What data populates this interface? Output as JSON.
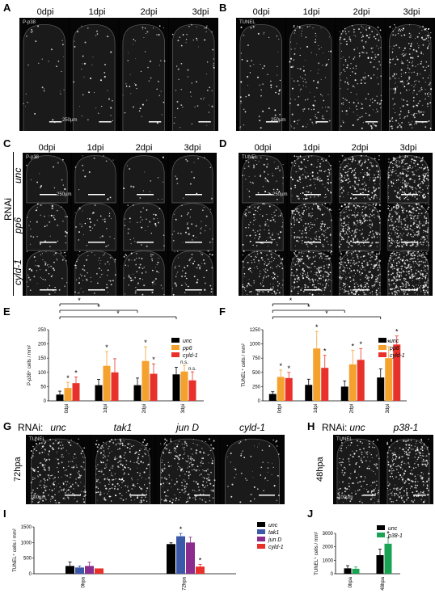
{
  "panels": {
    "A": {
      "letter": "A",
      "stain": "P-p38",
      "timepoints": [
        "0dpi",
        "1dpi",
        "2dpi",
        "3dpi"
      ],
      "scale": "250µm"
    },
    "B": {
      "letter": "B",
      "stain": "TUNEL",
      "timepoints": [
        "0dpi",
        "1dpi",
        "2dpi",
        "3dpi"
      ],
      "scale": "250µm"
    },
    "C": {
      "letter": "C",
      "stain": "P-p38",
      "timepoints": [
        "0dpi",
        "1dpi",
        "2dpi",
        "3dpi"
      ],
      "scale": "250µm",
      "rnai": "RNAi",
      "rows": [
        "unc",
        "pp6",
        "cyld-1"
      ]
    },
    "D": {
      "letter": "D",
      "stain": "TUNEL",
      "timepoints": [
        "0dpi",
        "1dpi",
        "2dpi",
        "3dpi"
      ],
      "scale": "250µm"
    },
    "G": {
      "letter": "G",
      "rnai": "RNAi:",
      "conditions": [
        "unc",
        "tak1",
        "jun D",
        "cyld-1"
      ],
      "stain": "TUNEL",
      "time": "72hpa",
      "scale": "100µm"
    },
    "H": {
      "letter": "H",
      "rnai": "RNAi:",
      "conditions": [
        "unc",
        "p38-1"
      ],
      "stain": "TUNEL",
      "time": "48hpa",
      "scale": "100µm"
    }
  },
  "chart_data": [
    {
      "id": "E",
      "letter": "E",
      "type": "bar",
      "ylabel": "P-p38⁺ cells / mm²",
      "categories": [
        "0dpi",
        "1dpi",
        "2dpi",
        "3dpi"
      ],
      "yticks": [
        0,
        50,
        100,
        150,
        200,
        250
      ],
      "ylim": [
        0,
        250
      ],
      "series": [
        {
          "name": "unc",
          "color": "#000000",
          "values": [
            22,
            55,
            55,
            93
          ],
          "err": [
            12,
            20,
            25,
            25
          ]
        },
        {
          "name": "pp6",
          "color": "#f4a12d",
          "values": [
            45,
            123,
            140,
            103
          ],
          "err": [
            20,
            50,
            50,
            22
          ]
        },
        {
          "name": "cyld-1",
          "color": "#e8312a",
          "values": [
            62,
            100,
            95,
            72
          ],
          "err": [
            22,
            48,
            35,
            30
          ]
        }
      ],
      "annotations": [
        [
          "",
          "*",
          "*"
        ],
        [
          "",
          "*",
          ""
        ],
        [
          "",
          "*",
          "*"
        ],
        [
          "",
          "n.s.",
          "n.s."
        ]
      ],
      "brackets": [
        "*",
        "*",
        "*"
      ]
    },
    {
      "id": "F",
      "letter": "F",
      "type": "bar",
      "ylabel": "TUNEL⁺ cells / mm²",
      "categories": [
        "0dpi",
        "1dpi",
        "2dpi",
        "3dpi"
      ],
      "yticks": [
        0,
        250,
        500,
        750,
        1000,
        1250
      ],
      "ylim": [
        0,
        1250
      ],
      "series": [
        {
          "name": "unc",
          "color": "#000000",
          "values": [
            120,
            280,
            250,
            410
          ],
          "err": [
            40,
            100,
            100,
            150
          ]
        },
        {
          "name": "pp6",
          "color": "#f4a12d",
          "values": [
            420,
            920,
            640,
            750
          ],
          "err": [
            120,
            300,
            250,
            200
          ]
        },
        {
          "name": "cyld-1",
          "color": "#e8312a",
          "values": [
            400,
            580,
            720,
            990
          ],
          "err": [
            100,
            220,
            200,
            150
          ]
        }
      ],
      "annotations": [
        [
          "",
          "*",
          "*"
        ],
        [
          "",
          "*",
          "*"
        ],
        [
          "",
          "*",
          "*"
        ],
        [
          "",
          "*",
          "*"
        ]
      ],
      "brackets": [
        "*",
        "*",
        "*"
      ]
    },
    {
      "id": "I",
      "letter": "I",
      "type": "bar",
      "ylabel": "TUNEL⁺ cells / mm²",
      "categories": [
        "0hpa",
        "72hpa"
      ],
      "yticks": [
        0,
        500,
        1000,
        1500
      ],
      "ylim": [
        0,
        1500
      ],
      "series": [
        {
          "name": "unc",
          "color": "#000000",
          "values": [
            250,
            950
          ],
          "err": [
            130,
            40
          ]
        },
        {
          "name": "tak1",
          "color": "#3c58a8",
          "values": [
            200,
            1200
          ],
          "err": [
            50,
            90
          ]
        },
        {
          "name": "jun D",
          "color": "#8b2c8f",
          "values": [
            250,
            1000
          ],
          "err": [
            120,
            170
          ]
        },
        {
          "name": "cyld-1",
          "color": "#e8312a",
          "values": [
            170,
            230
          ],
          "err": [
            0,
            70
          ]
        }
      ],
      "annotations": [
        [
          "",
          "",
          "",
          ""
        ],
        [
          "",
          "*",
          "",
          "*"
        ]
      ]
    },
    {
      "id": "J",
      "letter": "J",
      "type": "bar",
      "ylabel": "TUNEL⁺ cells / mm²",
      "categories": [
        "0hpa",
        "48hpa"
      ],
      "yticks": [
        0,
        1000,
        2000,
        3000
      ],
      "ylim": [
        0,
        3000
      ],
      "series": [
        {
          "name": "unc",
          "color": "#000000",
          "values": [
            400,
            1380
          ],
          "err": [
            200,
            450
          ]
        },
        {
          "name": "p38-1",
          "color": "#1aa353",
          "values": [
            370,
            2230
          ],
          "err": [
            140,
            450
          ]
        }
      ],
      "annotations": [
        [
          "",
          ""
        ],
        [
          "",
          "*"
        ]
      ]
    }
  ]
}
